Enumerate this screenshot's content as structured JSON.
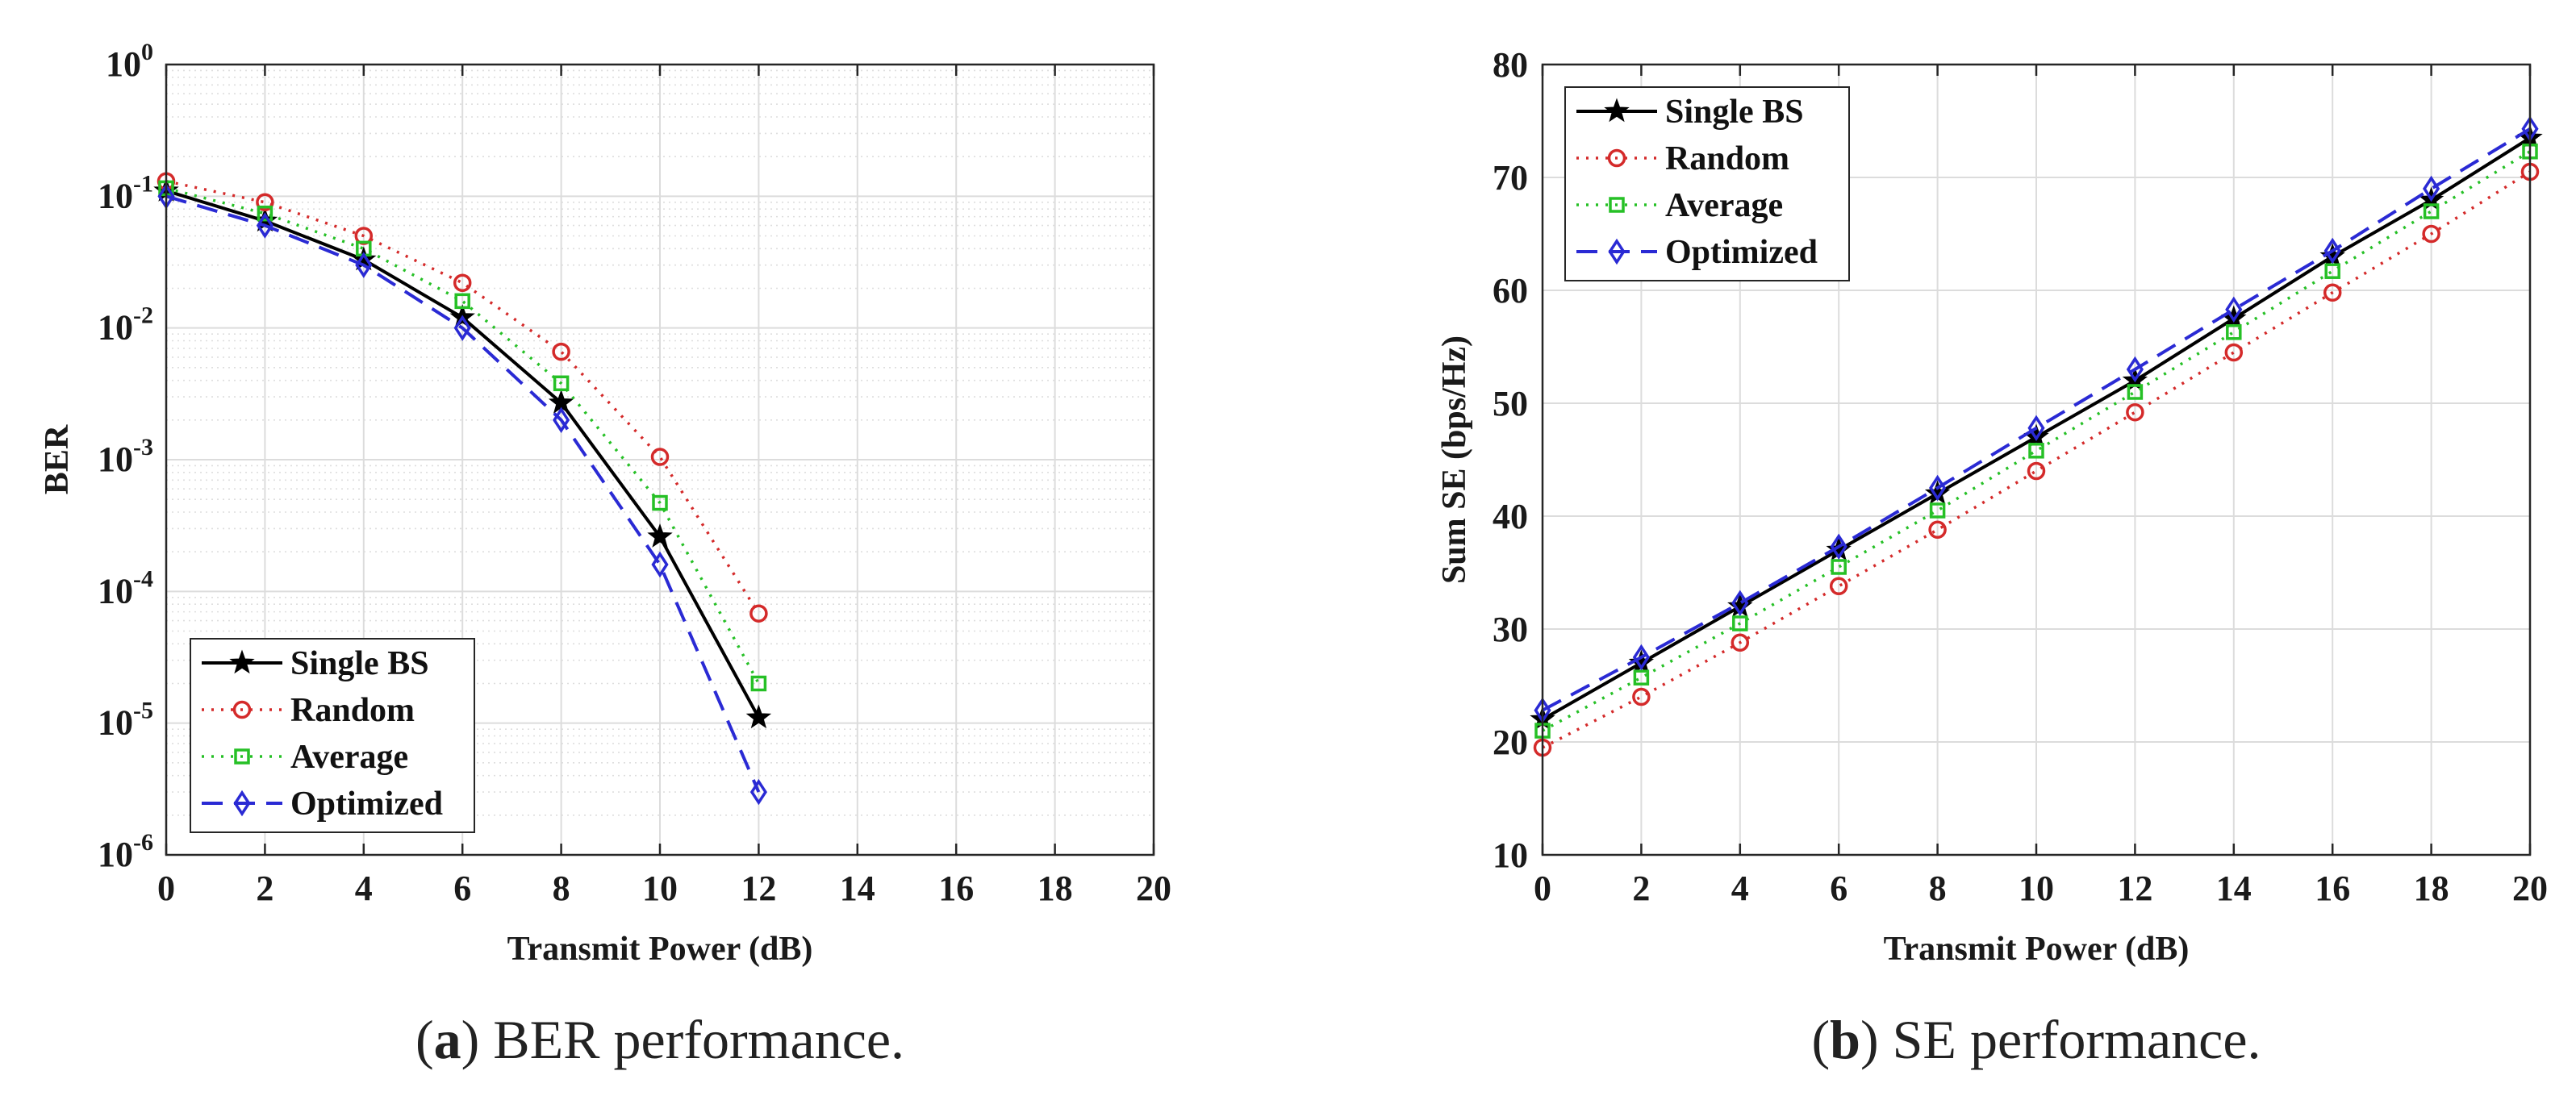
{
  "chart_data": [
    {
      "type": "line",
      "id": "ber",
      "yscale": "log",
      "xlabel": "Transmit Power (dB)",
      "ylabel": "BER",
      "xlim": [
        0,
        20
      ],
      "ylim_exp": [
        -6,
        0
      ],
      "x_ticks": [
        0,
        2,
        4,
        6,
        8,
        10,
        12,
        14,
        16,
        18,
        20
      ],
      "y_tick_exps": [
        -6,
        -5,
        -4,
        -3,
        -2,
        -1,
        0
      ],
      "y_tick_labels": [
        {
          "base": "10",
          "exp": "-6"
        },
        {
          "base": "10",
          "exp": "-5"
        },
        {
          "base": "10",
          "exp": "-4"
        },
        {
          "base": "10",
          "exp": "-3"
        },
        {
          "base": "10",
          "exp": "-2"
        },
        {
          "base": "10",
          "exp": "-1"
        },
        {
          "base": "10",
          "exp": "0"
        }
      ],
      "grid": true,
      "legend_position": "bottom-left",
      "x": [
        0,
        2,
        4,
        6,
        8,
        10,
        12
      ],
      "series": [
        {
          "name": "Single BS",
          "values": [
            0.11,
            0.065,
            0.033,
            0.012,
            0.0027,
            0.00026,
            1.1e-05
          ]
        },
        {
          "name": "Random",
          "values": [
            0.13,
            0.09,
            0.05,
            0.022,
            0.0066,
            0.00105,
            6.8e-05
          ]
        },
        {
          "name": "Average",
          "values": [
            0.115,
            0.074,
            0.04,
            0.016,
            0.0038,
            0.00047,
            2e-05
          ]
        },
        {
          "name": "Optimized",
          "values": [
            0.1,
            0.06,
            0.03,
            0.01,
            0.002,
            0.00016,
            3e-06
          ]
        }
      ]
    },
    {
      "type": "line",
      "id": "se",
      "xlabel": "Transmit Power (dB)",
      "ylabel": "Sum SE (bps/Hz)",
      "xlim": [
        0,
        20
      ],
      "ylim": [
        10,
        80
      ],
      "x_ticks": [
        0,
        2,
        4,
        6,
        8,
        10,
        12,
        14,
        16,
        18,
        20
      ],
      "y_ticks": [
        10,
        20,
        30,
        40,
        50,
        60,
        70,
        80
      ],
      "grid": true,
      "legend_position": "top-left",
      "x": [
        0,
        2,
        4,
        6,
        8,
        10,
        12,
        14,
        16,
        18,
        20
      ],
      "series": [
        {
          "name": "Single BS",
          "values": [
            22,
            27,
            32,
            37,
            42,
            47,
            52,
            57.5,
            63,
            68,
            73.5
          ]
        },
        {
          "name": "Random",
          "values": [
            19.5,
            24,
            28.8,
            33.8,
            38.8,
            44,
            49.2,
            54.5,
            59.8,
            65,
            70.5
          ]
        },
        {
          "name": "Average",
          "values": [
            21,
            25.7,
            30.5,
            35.5,
            40.5,
            45.8,
            51,
            56.3,
            61.7,
            67,
            72.3
          ]
        },
        {
          "name": "Optimized",
          "values": [
            22.8,
            27.5,
            32.3,
            37.3,
            42.5,
            47.8,
            53,
            58.3,
            63.5,
            69,
            74.3
          ]
        }
      ]
    }
  ],
  "captions": {
    "a": {
      "letter": "a",
      "text": " BER performance."
    },
    "b": {
      "letter": "b",
      "text": " SE performance."
    }
  },
  "colors": {
    "single_bs": "#000000",
    "random": "#d42a2a",
    "average": "#26c026",
    "optimized": "#2a2ad4",
    "grid_major": "#dcdcdc",
    "grid_minor": "#dedede"
  }
}
